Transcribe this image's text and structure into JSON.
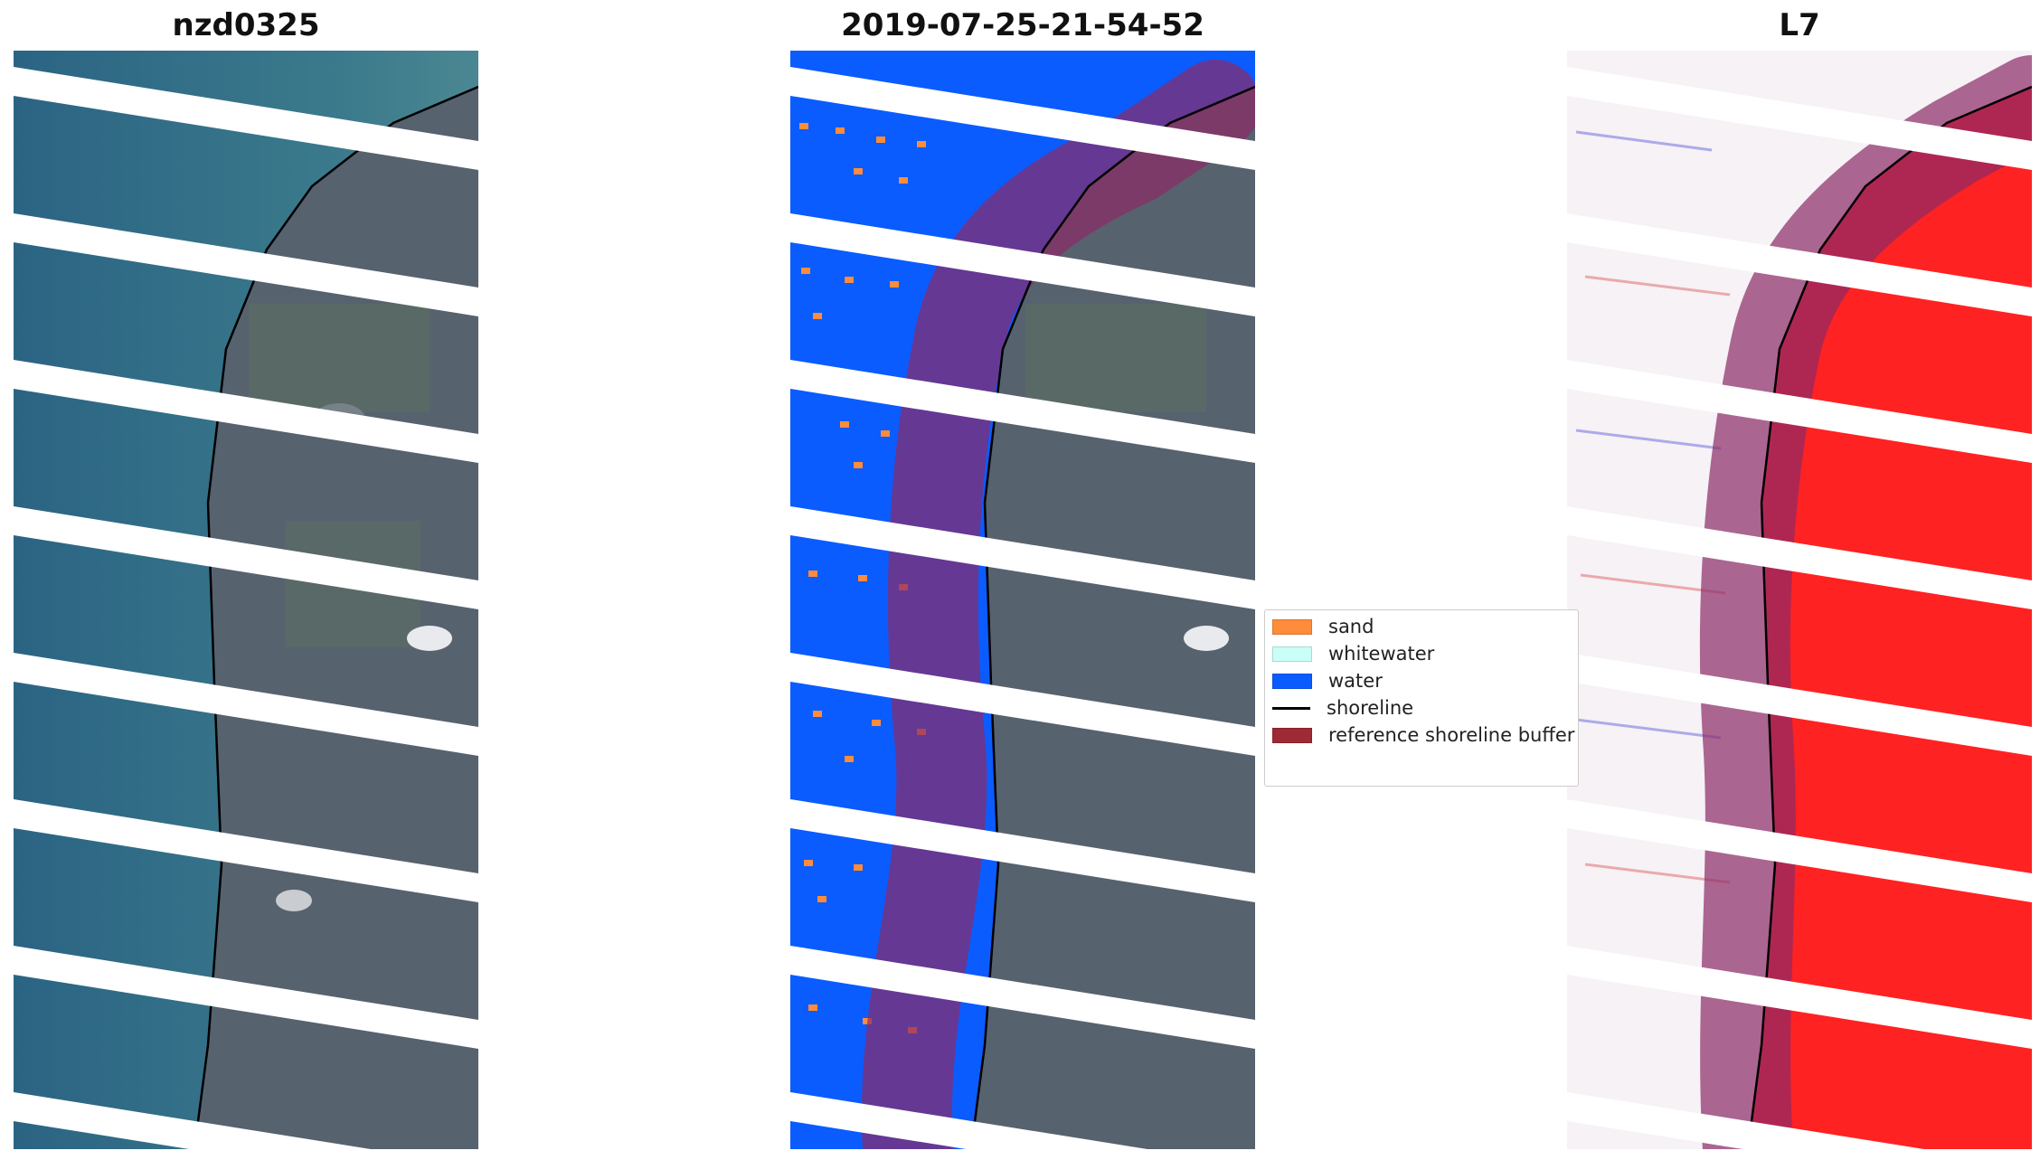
{
  "panels": [
    {
      "title": "nzd0325"
    },
    {
      "title": "2019-07-25-21-54-52"
    },
    {
      "title": "L7"
    }
  ],
  "legend": {
    "items": [
      {
        "label": "sand",
        "color": "#ff8c3a"
      },
      {
        "label": "whitewater",
        "color": "#c9fff7"
      },
      {
        "label": "water",
        "color": "#0a5cff"
      },
      {
        "label": "shoreline",
        "color": "#000000"
      },
      {
        "label": "reference shoreline buffer",
        "color": "#9e2a35"
      }
    ]
  },
  "colors": {
    "ocean": "#2f6a86",
    "land": "#55616f",
    "buffer": "#8b2a66",
    "land_index": "#ff2222"
  }
}
